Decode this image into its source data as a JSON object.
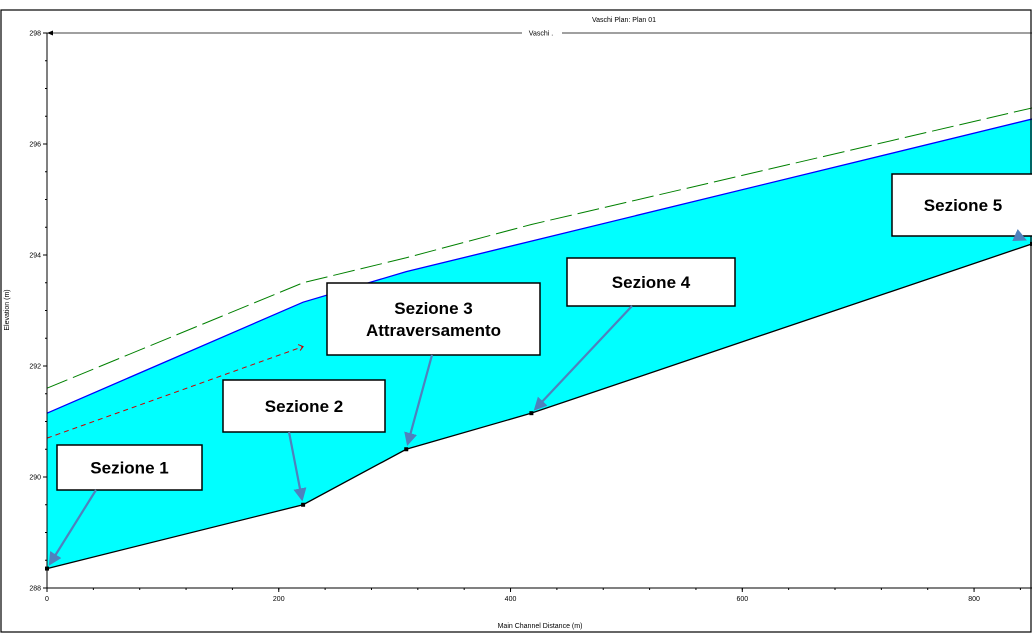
{
  "chart_data": {
    "type": "area",
    "title": "Vaschi      Plan: Plan 01",
    "reach_label": "Vaschi .",
    "xlabel": "Main Channel Distance (m)",
    "ylabel": "Elevation (m)",
    "xlim": [
      0,
      850
    ],
    "ylim": [
      288,
      298
    ],
    "x_ticks": [
      0,
      200,
      400,
      600,
      800
    ],
    "y_ticks": [
      288,
      290,
      292,
      294,
      296,
      298
    ],
    "grid": false,
    "series": [
      {
        "key": "ground",
        "x": [
          0,
          221,
          310,
          418,
          850
        ],
        "y": [
          288.35,
          289.5,
          290.5,
          291.15,
          294.2
        ],
        "color": "#000000"
      },
      {
        "key": "water",
        "x": [
          0,
          221,
          310,
          418,
          850
        ],
        "y": [
          291.15,
          293.15,
          293.7,
          294.25,
          296.45
        ],
        "color": "#0000ff"
      },
      {
        "key": "energy",
        "x": [
          0,
          221,
          310,
          418,
          850
        ],
        "y": [
          291.6,
          293.5,
          293.95,
          294.55,
          296.65
        ],
        "color": "#008000"
      },
      {
        "key": "critical",
        "x": [
          0,
          221
        ],
        "y": [
          290.7,
          292.35
        ],
        "color": "#cc0000"
      }
    ],
    "fill_color": "#00ffff",
    "annotations": [
      {
        "lines": [
          "Sezione 1"
        ],
        "target_x": 0,
        "target_y": 288.35
      },
      {
        "lines": [
          "Sezione 2"
        ],
        "target_x": 221,
        "target_y": 289.5
      },
      {
        "lines": [
          "Sezione 3",
          "Attraversamento"
        ],
        "target_x": 310,
        "target_y": 290.5
      },
      {
        "lines": [
          "Sezione 4"
        ],
        "target_x": 418,
        "target_y": 291.15
      },
      {
        "lines": [
          "Sezione 5"
        ],
        "target_x": 850,
        "target_y": 294.2
      }
    ]
  }
}
